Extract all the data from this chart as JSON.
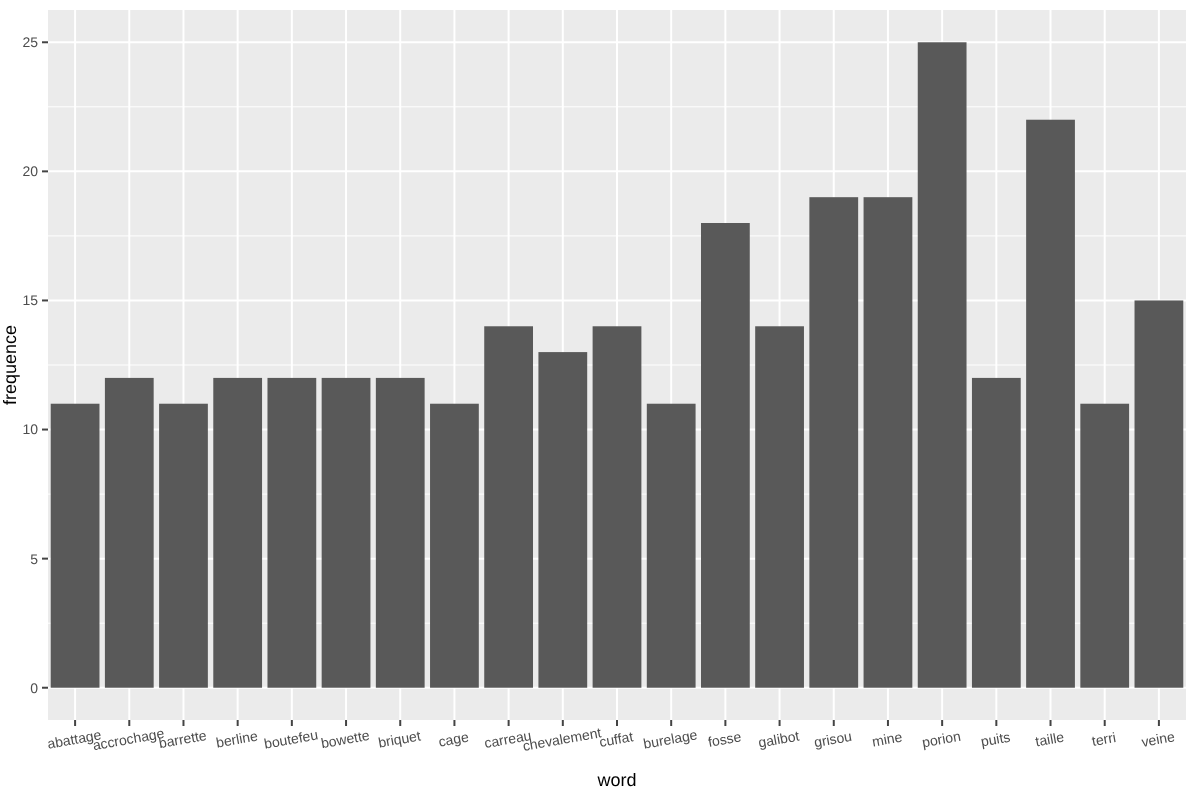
{
  "chart_data": {
    "type": "bar",
    "xlabel": "word",
    "ylabel": "frequence",
    "categories": [
      "abattage",
      "accrochage",
      "barrette",
      "berline",
      "boutefeu",
      "bowette",
      "briquet",
      "cage",
      "carreau",
      "chevalement",
      "cuffat",
      "burelage",
      "fosse",
      "galibot",
      "grisou",
      "mine",
      "porion",
      "puits",
      "taille",
      "terri",
      "veine"
    ],
    "values": [
      11,
      12,
      11,
      12,
      12,
      12,
      12,
      11,
      14,
      13,
      14,
      11,
      18,
      14,
      19,
      19,
      25,
      12,
      22,
      11,
      15
    ],
    "color": "#595959",
    "ylim": [
      -1.25,
      26.25
    ],
    "yticks": [
      0,
      5,
      10,
      15,
      20,
      25
    ],
    "grid": true
  }
}
